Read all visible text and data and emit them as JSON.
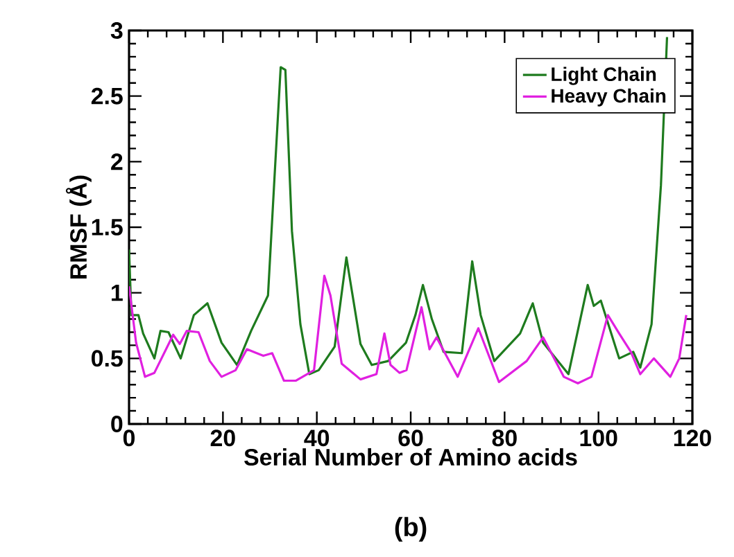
{
  "chart_data": {
    "type": "line",
    "xlabel": "Serial Number of Amino acids",
    "ylabel": "RMSF (Å)",
    "annotations": [
      "(b)"
    ],
    "xlim": [
      0,
      120
    ],
    "ylim": [
      0,
      3
    ],
    "xticks": [
      0,
      20,
      40,
      60,
      80,
      100,
      120
    ],
    "yticks": [
      0,
      0.5,
      1,
      1.5,
      2,
      2.5,
      3
    ],
    "legend": "top right",
    "grid": false,
    "marker": "none",
    "line_style": "solid",
    "series": [
      {
        "name": "Light Chain",
        "color": "#1e7b1e",
        "x": [
          0,
          0.5,
          2,
          3,
          5.4,
          6.7,
          8.4,
          11,
          13.8,
          16.7,
          19.7,
          23,
          26,
          29.6,
          31,
          32.3,
          33.3,
          34.7,
          36.5,
          38.4,
          40.4,
          43.8,
          46.3,
          49.3,
          51.7,
          55.2,
          59,
          61,
          62.6,
          64.5,
          67,
          70.9,
          73.1,
          74.9,
          77.8,
          83.3,
          86,
          88.2,
          93.6,
          97.7,
          99,
          100.5,
          104.4,
          107.4,
          108.9,
          111.3,
          113.3,
          114.6
        ],
        "values": [
          1.33,
          0.83,
          0.83,
          0.69,
          0.5,
          0.71,
          0.7,
          0.5,
          0.83,
          0.92,
          0.62,
          0.45,
          0.71,
          0.98,
          1.89,
          2.72,
          2.7,
          1.47,
          0.76,
          0.38,
          0.41,
          0.59,
          1.27,
          0.61,
          0.45,
          0.48,
          0.62,
          0.83,
          1.06,
          0.8,
          0.55,
          0.54,
          1.24,
          0.83,
          0.48,
          0.69,
          0.92,
          0.62,
          0.38,
          1.06,
          0.9,
          0.94,
          0.5,
          0.55,
          0.43,
          0.76,
          1.82,
          2.95
        ]
      },
      {
        "name": "Heavy Chain",
        "color": "#e020e0",
        "x": [
          0,
          1.5,
          3.4,
          5.4,
          9.4,
          10.8,
          12.3,
          14.8,
          17.2,
          19.7,
          22.7,
          25.1,
          28.6,
          30.5,
          33,
          35.5,
          39.4,
          41.6,
          42.9,
          45.3,
          49.3,
          52.7,
          54.4,
          55.7,
          57.6,
          59.1,
          62.3,
          64,
          65.5,
          70,
          74.4,
          78.8,
          84.7,
          88.2,
          92.6,
          95.6,
          98.5,
          102,
          104.4,
          106.9,
          108.9,
          111.8,
          115.3,
          117.2,
          118.7
        ],
        "values": [
          1.05,
          0.62,
          0.36,
          0.39,
          0.68,
          0.61,
          0.71,
          0.7,
          0.48,
          0.36,
          0.41,
          0.57,
          0.52,
          0.54,
          0.33,
          0.33,
          0.41,
          1.13,
          0.98,
          0.46,
          0.34,
          0.38,
          0.69,
          0.45,
          0.39,
          0.41,
          0.89,
          0.57,
          0.66,
          0.36,
          0.73,
          0.32,
          0.48,
          0.66,
          0.36,
          0.31,
          0.36,
          0.83,
          0.69,
          0.55,
          0.38,
          0.5,
          0.36,
          0.5,
          0.83
        ]
      }
    ]
  }
}
